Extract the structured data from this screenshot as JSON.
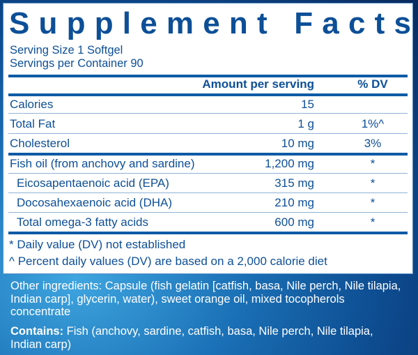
{
  "title": "Supplement Facts",
  "serving_size": "Serving Size 1 Softgel",
  "servings_per_container": "Servings per Container 90",
  "header": {
    "amount": "Amount per serving",
    "dv": "% DV"
  },
  "rows": [
    {
      "name": "Calories",
      "amount": "15",
      "dv": ""
    },
    {
      "name": "Total Fat",
      "amount": "1 g",
      "dv": "1%^"
    },
    {
      "name": "Cholesterol",
      "amount": "10 mg",
      "dv": "3%"
    },
    {
      "name": "Fish oil (from anchovy and sardine)",
      "amount": "1,200 mg",
      "dv": "*"
    },
    {
      "name": "Eicosapentaenoic acid (EPA)",
      "amount": "315 mg",
      "dv": "*"
    },
    {
      "name": "Docosahexaenoic acid (DHA)",
      "amount": "210 mg",
      "dv": "*"
    },
    {
      "name": "Total omega-3 fatty acids",
      "amount": "600 mg",
      "dv": "*"
    }
  ],
  "footnotes": [
    "* Daily value (DV) not established",
    "^ Percent daily values (DV) are based on a 2,000 calorie diet"
  ],
  "other_ingredients": "Other ingredients: Capsule (fish gelatin [catfish, basa, Nile perch, Nile tilapia, Indian carp], glycerin, water), sweet orange oil, mixed tocopherols concentrate",
  "contains": {
    "label": "Contains:",
    "text": " Fish (anchovy, sardine, catfish, basa, Nile perch, Nile tilapia, Indian carp)"
  },
  "colors": {
    "text": "#0d4f97",
    "rule": "#0d5aa5"
  }
}
